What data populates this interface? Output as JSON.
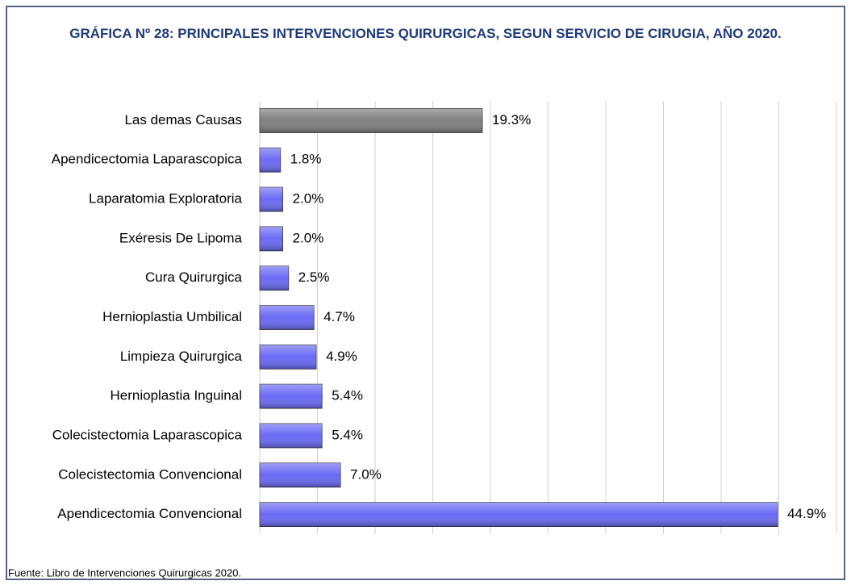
{
  "chart_data": {
    "type": "bar",
    "orientation": "horizontal",
    "title": "GRÁFICA Nº 28: PRINCIPALES INTERVENCIONES QUIRURGICAS, SEGUN SERVICIO DE CIRUGIA, AÑO 2020.",
    "categories": [
      "Las demas Causas",
      "Apendicectomia Laparascopica",
      "Laparatomia Exploratoria",
      "Exéresis De Lipoma",
      "Cura Quirurgica",
      "Hernioplastia Umbilical",
      "Limpieza Quirurgica",
      "Hernioplastia Inguinal",
      "Colecistectomia Laparascopica",
      "Colecistectomia Convencional",
      "Apendicectomia Convencional"
    ],
    "values": [
      19.3,
      1.8,
      2.0,
      2.0,
      2.5,
      4.7,
      4.9,
      5.4,
      5.4,
      7.0,
      44.9
    ],
    "value_labels": [
      "19.3%",
      "1.8%",
      "2.0%",
      "2.0%",
      "2.5%",
      "4.7%",
      "4.9%",
      "5.4%",
      "5.4%",
      "7.0%",
      "44.9%"
    ],
    "colors": [
      "#7f7f7f",
      "#6a6af5",
      "#6a6af5",
      "#6a6af5",
      "#6a6af5",
      "#6a6af5",
      "#6a6af5",
      "#6a6af5",
      "#6a6af5",
      "#6a6af5",
      "#6a6af5"
    ],
    "xlim": [
      0,
      50
    ],
    "xticks": [
      0,
      5,
      10,
      15,
      20,
      25,
      30,
      35,
      40,
      45,
      50
    ],
    "grid": true,
    "source": "Fuente: Libro de Intervenciones Quirurgicas 2020."
  }
}
